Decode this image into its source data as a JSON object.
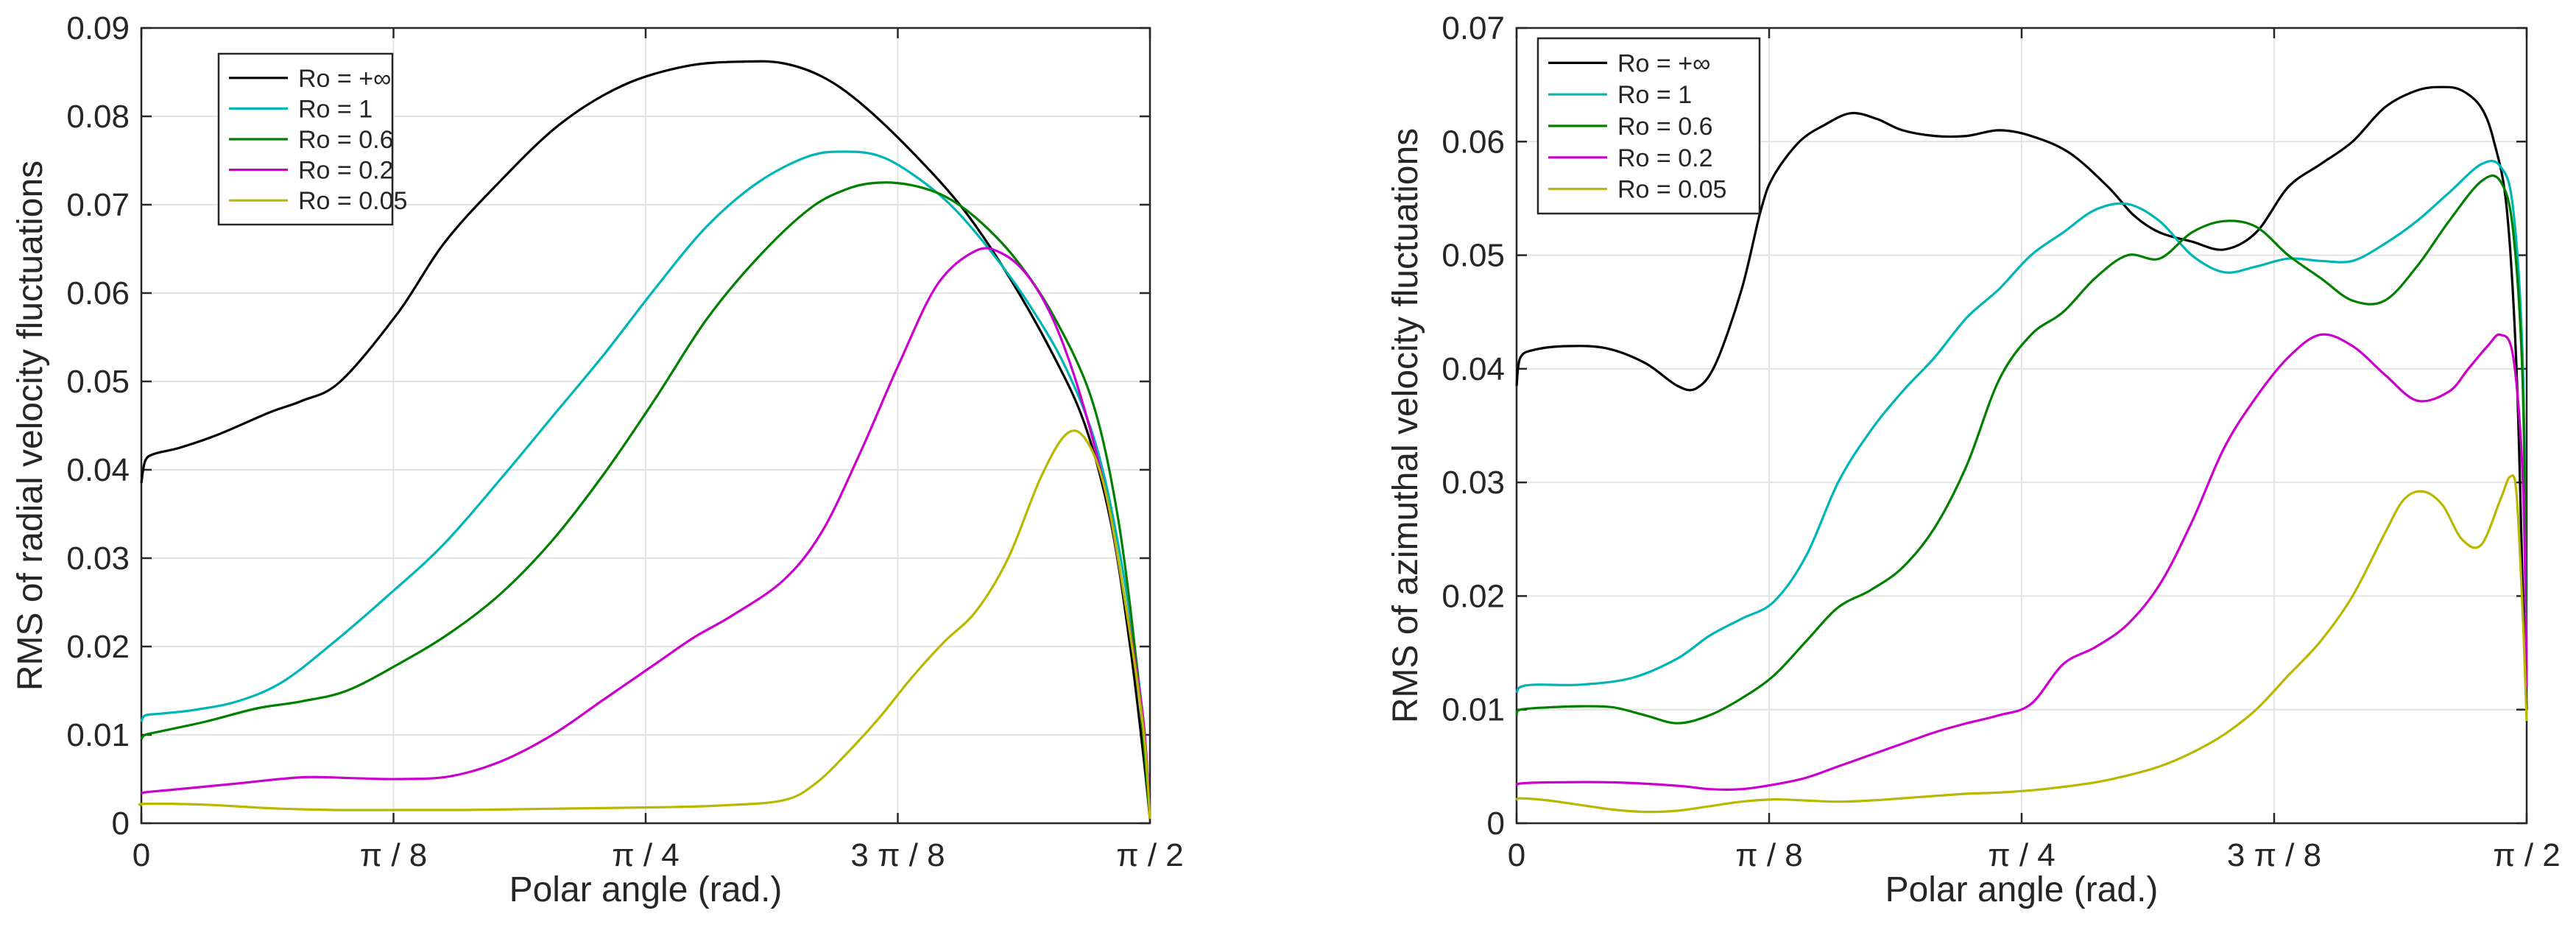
{
  "chart_data": [
    {
      "type": "line",
      "title": "",
      "xlabel": "Polar angle (rad.)",
      "ylabel": "RMS of radial velocity fluctuations",
      "xlim": [
        0,
        1.5708
      ],
      "ylim": [
        0,
        0.09
      ],
      "grid": true,
      "legend_position": "top-left",
      "x_ticks": [
        {
          "value": 0,
          "label": "0"
        },
        {
          "value": 0.3927,
          "label": "π / 8"
        },
        {
          "value": 0.7854,
          "label": "π / 4"
        },
        {
          "value": 1.1781,
          "label": "3 π / 8"
        },
        {
          "value": 1.5708,
          "label": "π / 2"
        }
      ],
      "y_ticks": [
        {
          "value": 0,
          "label": "0"
        },
        {
          "value": 0.01,
          "label": "0.01"
        },
        {
          "value": 0.02,
          "label": "0.02"
        },
        {
          "value": 0.03,
          "label": "0.03"
        },
        {
          "value": 0.04,
          "label": "0.04"
        },
        {
          "value": 0.05,
          "label": "0.05"
        },
        {
          "value": 0.06,
          "label": "0.06"
        },
        {
          "value": 0.07,
          "label": "0.07"
        },
        {
          "value": 0.08,
          "label": "0.08"
        },
        {
          "value": 0.09,
          "label": "0.09"
        }
      ],
      "series": [
        {
          "name": "Ro = +∞",
          "color": "#000000",
          "x": [
            0,
            0.006,
            0.02,
            0.06,
            0.12,
            0.2,
            0.25,
            0.31,
            0.4,
            0.47,
            0.55,
            0.65,
            0.75,
            0.85,
            0.94,
            1.0,
            1.06,
            1.12,
            1.2,
            1.28,
            1.35,
            1.42,
            1.47,
            1.51,
            1.54,
            1.56,
            1.5708
          ],
          "y": [
            0.0385,
            0.041,
            0.0418,
            0.0425,
            0.044,
            0.0465,
            0.0478,
            0.05,
            0.0578,
            0.0655,
            0.072,
            0.079,
            0.0835,
            0.0857,
            0.0862,
            0.086,
            0.0845,
            0.0815,
            0.076,
            0.0695,
            0.062,
            0.053,
            0.045,
            0.034,
            0.02,
            0.008,
            0.0005
          ]
        },
        {
          "name": "Ro = 1",
          "color": "#00B5B5",
          "x": [
            0,
            0.006,
            0.03,
            0.08,
            0.15,
            0.22,
            0.3,
            0.38,
            0.47,
            0.56,
            0.64,
            0.72,
            0.8,
            0.88,
            0.96,
            1.04,
            1.1,
            1.15,
            1.2,
            1.26,
            1.32,
            1.38,
            1.44,
            1.49,
            1.53,
            1.56,
            1.5708
          ],
          "y": [
            0.0115,
            0.0122,
            0.0124,
            0.0128,
            0.0138,
            0.016,
            0.0205,
            0.0255,
            0.0315,
            0.039,
            0.046,
            0.053,
            0.0605,
            0.0675,
            0.0725,
            0.0755,
            0.076,
            0.0755,
            0.0735,
            0.07,
            0.065,
            0.059,
            0.0515,
            0.042,
            0.028,
            0.012,
            0.0005
          ]
        },
        {
          "name": "Ro = 0.6",
          "color": "#008000",
          "x": [
            0,
            0.006,
            0.03,
            0.1,
            0.18,
            0.25,
            0.32,
            0.4,
            0.48,
            0.56,
            0.64,
            0.72,
            0.8,
            0.88,
            0.96,
            1.04,
            1.1,
            1.15,
            1.2,
            1.25,
            1.3,
            1.36,
            1.42,
            1.48,
            1.52,
            1.55,
            1.5708
          ],
          "y": [
            0.0095,
            0.01,
            0.0104,
            0.0115,
            0.013,
            0.0138,
            0.015,
            0.018,
            0.0215,
            0.026,
            0.032,
            0.0395,
            0.048,
            0.057,
            0.064,
            0.0695,
            0.0718,
            0.0725,
            0.0722,
            0.071,
            0.0685,
            0.064,
            0.0575,
            0.048,
            0.035,
            0.018,
            0.0005
          ]
        },
        {
          "name": "Ro = 0.2",
          "color": "#CC00CC",
          "x": [
            0,
            0.006,
            0.05,
            0.15,
            0.25,
            0.33,
            0.4,
            0.48,
            0.56,
            0.64,
            0.72,
            0.8,
            0.86,
            0.92,
            1.0,
            1.06,
            1.12,
            1.18,
            1.24,
            1.3,
            1.34,
            1.38,
            1.42,
            1.46,
            1.5,
            1.53,
            1.56,
            1.5708
          ],
          "y": [
            0.0033,
            0.0035,
            0.0038,
            0.0045,
            0.0052,
            0.0051,
            0.005,
            0.0053,
            0.007,
            0.01,
            0.014,
            0.018,
            0.021,
            0.0235,
            0.0275,
            0.033,
            0.042,
            0.052,
            0.061,
            0.0648,
            0.0645,
            0.062,
            0.057,
            0.049,
            0.038,
            0.026,
            0.012,
            0.0005
          ]
        },
        {
          "name": "Ro = 0.05",
          "color": "#B8B800",
          "x": [
            0,
            0.006,
            0.1,
            0.2,
            0.3,
            0.4,
            0.5,
            0.6,
            0.7,
            0.8,
            0.9,
            1.0,
            1.05,
            1.1,
            1.15,
            1.2,
            1.25,
            1.3,
            1.35,
            1.4,
            1.44,
            1.47,
            1.5,
            1.53,
            1.56,
            1.5708
          ],
          "y": [
            0.002,
            0.0022,
            0.0021,
            0.0017,
            0.0015,
            0.0015,
            0.0015,
            0.0016,
            0.0017,
            0.0018,
            0.002,
            0.0026,
            0.0045,
            0.008,
            0.012,
            0.0165,
            0.0205,
            0.024,
            0.03,
            0.039,
            0.044,
            0.0435,
            0.038,
            0.026,
            0.011,
            0.0005
          ]
        }
      ]
    },
    {
      "type": "line",
      "title": "",
      "xlabel": "Polar angle (rad.)",
      "ylabel": "RMS of azimuthal velocity fluctuations",
      "xlim": [
        0,
        1.5708
      ],
      "ylim": [
        0,
        0.07
      ],
      "grid": true,
      "legend_position": "top-left",
      "x_ticks": [
        {
          "value": 0,
          "label": "0"
        },
        {
          "value": 0.3927,
          "label": "π / 8"
        },
        {
          "value": 0.7854,
          "label": "π / 4"
        },
        {
          "value": 1.1781,
          "label": "3 π / 8"
        },
        {
          "value": 1.5708,
          "label": "π / 2"
        }
      ],
      "y_ticks": [
        {
          "value": 0,
          "label": "0"
        },
        {
          "value": 0.01,
          "label": "0.01"
        },
        {
          "value": 0.02,
          "label": "0.02"
        },
        {
          "value": 0.03,
          "label": "0.03"
        },
        {
          "value": 0.04,
          "label": "0.04"
        },
        {
          "value": 0.05,
          "label": "0.05"
        },
        {
          "value": 0.06,
          "label": "0.06"
        },
        {
          "value": 0.07,
          "label": "0.07"
        }
      ],
      "series": [
        {
          "name": "Ro = +∞",
          "color": "#000000",
          "x": [
            0,
            0.006,
            0.03,
            0.08,
            0.14,
            0.2,
            0.25,
            0.28,
            0.31,
            0.35,
            0.38,
            0.4,
            0.44,
            0.48,
            0.52,
            0.56,
            0.6,
            0.65,
            0.7,
            0.75,
            0.8,
            0.86,
            0.92,
            0.96,
            1.0,
            1.05,
            1.1,
            1.15,
            1.2,
            1.25,
            1.3,
            1.35,
            1.4,
            1.44,
            1.47,
            1.5,
            1.52,
            1.54,
            1.555,
            1.565,
            1.5708
          ],
          "y": [
            0.0385,
            0.041,
            0.0417,
            0.042,
            0.0418,
            0.0405,
            0.0385,
            0.0383,
            0.0405,
            0.047,
            0.054,
            0.057,
            0.06,
            0.0615,
            0.0625,
            0.062,
            0.061,
            0.0605,
            0.0605,
            0.061,
            0.0605,
            0.059,
            0.056,
            0.0535,
            0.052,
            0.0512,
            0.0505,
            0.052,
            0.056,
            0.058,
            0.06,
            0.063,
            0.0645,
            0.0648,
            0.0645,
            0.063,
            0.06,
            0.054,
            0.04,
            0.02,
            0.01
          ]
        },
        {
          "name": "Ro = 1",
          "color": "#00B5B5",
          "x": [
            0,
            0.006,
            0.03,
            0.1,
            0.18,
            0.25,
            0.3,
            0.35,
            0.4,
            0.45,
            0.5,
            0.55,
            0.6,
            0.65,
            0.7,
            0.75,
            0.8,
            0.85,
            0.9,
            0.95,
            1.0,
            1.05,
            1.1,
            1.15,
            1.2,
            1.25,
            1.3,
            1.35,
            1.4,
            1.45,
            1.5,
            1.53,
            1.55,
            1.565,
            1.5708
          ],
          "y": [
            0.0115,
            0.012,
            0.0122,
            0.0122,
            0.0128,
            0.0145,
            0.0165,
            0.018,
            0.0195,
            0.0235,
            0.03,
            0.0345,
            0.038,
            0.041,
            0.0445,
            0.047,
            0.05,
            0.052,
            0.054,
            0.0545,
            0.053,
            0.05,
            0.0485,
            0.049,
            0.0497,
            0.0495,
            0.0495,
            0.051,
            0.053,
            0.0555,
            0.058,
            0.0578,
            0.054,
            0.04,
            0.013
          ]
        },
        {
          "name": "Ro = 0.6",
          "color": "#008000",
          "x": [
            0,
            0.006,
            0.05,
            0.1,
            0.15,
            0.2,
            0.25,
            0.3,
            0.35,
            0.4,
            0.45,
            0.5,
            0.55,
            0.6,
            0.65,
            0.7,
            0.75,
            0.8,
            0.85,
            0.9,
            0.95,
            1.0,
            1.05,
            1.1,
            1.15,
            1.2,
            1.25,
            1.3,
            1.35,
            1.4,
            1.45,
            1.5,
            1.53,
            1.55,
            1.565,
            1.5708
          ],
          "y": [
            0.0095,
            0.01,
            0.0102,
            0.0103,
            0.0102,
            0.0095,
            0.0088,
            0.0095,
            0.011,
            0.013,
            0.016,
            0.019,
            0.0205,
            0.0225,
            0.026,
            0.0315,
            0.039,
            0.043,
            0.045,
            0.048,
            0.05,
            0.0497,
            0.052,
            0.053,
            0.0525,
            0.05,
            0.048,
            0.046,
            0.046,
            0.049,
            0.053,
            0.0565,
            0.0565,
            0.052,
            0.038,
            0.012
          ]
        },
        {
          "name": "Ro = 0.2",
          "color": "#CC00CC",
          "x": [
            0,
            0.006,
            0.05,
            0.15,
            0.25,
            0.3,
            0.35,
            0.4,
            0.45,
            0.5,
            0.55,
            0.6,
            0.65,
            0.7,
            0.75,
            0.8,
            0.85,
            0.9,
            0.95,
            1.0,
            1.05,
            1.1,
            1.15,
            1.2,
            1.25,
            1.3,
            1.35,
            1.4,
            1.45,
            1.48,
            1.51,
            1.53,
            1.55,
            1.565,
            1.5708
          ],
          "y": [
            0.0033,
            0.0035,
            0.0036,
            0.0036,
            0.0033,
            0.003,
            0.003,
            0.0034,
            0.004,
            0.005,
            0.006,
            0.007,
            0.008,
            0.0088,
            0.0095,
            0.0105,
            0.014,
            0.0155,
            0.0175,
            0.021,
            0.0265,
            0.033,
            0.0375,
            0.041,
            0.043,
            0.042,
            0.0395,
            0.0372,
            0.038,
            0.04,
            0.042,
            0.043,
            0.041,
            0.03,
            0.012
          ]
        },
        {
          "name": "Ro = 0.05",
          "color": "#B8B800",
          "x": [
            0,
            0.006,
            0.05,
            0.1,
            0.15,
            0.2,
            0.25,
            0.3,
            0.35,
            0.4,
            0.45,
            0.5,
            0.55,
            0.6,
            0.65,
            0.7,
            0.75,
            0.8,
            0.85,
            0.9,
            0.95,
            1.0,
            1.05,
            1.1,
            1.15,
            1.2,
            1.25,
            1.3,
            1.35,
            1.38,
            1.41,
            1.44,
            1.47,
            1.5,
            1.53,
            1.545,
            1.555,
            1.565,
            1.5708
          ],
          "y": [
            0.002,
            0.0022,
            0.002,
            0.0016,
            0.0012,
            0.001,
            0.0011,
            0.0015,
            0.0019,
            0.0021,
            0.002,
            0.0019,
            0.002,
            0.0022,
            0.0024,
            0.0026,
            0.0027,
            0.0029,
            0.0032,
            0.0036,
            0.0042,
            0.005,
            0.0062,
            0.0078,
            0.01,
            0.013,
            0.016,
            0.02,
            0.0255,
            0.0285,
            0.0292,
            0.028,
            0.025,
            0.0245,
            0.0285,
            0.0305,
            0.029,
            0.018,
            0.009
          ]
        }
      ]
    }
  ]
}
